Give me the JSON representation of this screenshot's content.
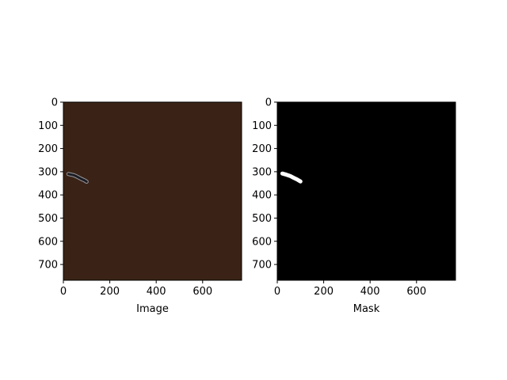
{
  "chart_data": [
    {
      "type": "image",
      "xlabel": "Image",
      "ylabel": "",
      "xlim": [
        0,
        768
      ],
      "ylim": [
        768,
        0
      ],
      "xticks": [
        0,
        200,
        400,
        600
      ],
      "yticks": [
        0,
        100,
        200,
        300,
        400,
        500,
        600,
        700
      ],
      "background_color": "#3a2316",
      "object": {
        "name": "dark elongated object",
        "color": "#1c1c22",
        "outline_color": "#9a9aa0",
        "path": [
          [
            22,
            310
          ],
          [
            45,
            315
          ],
          [
            60,
            322
          ],
          [
            75,
            330
          ],
          [
            92,
            338
          ],
          [
            100,
            343
          ]
        ]
      }
    },
    {
      "type": "image",
      "xlabel": "Mask",
      "ylabel": "",
      "xlim": [
        0,
        768
      ],
      "ylim": [
        768,
        0
      ],
      "xticks": [
        0,
        200,
        400,
        600
      ],
      "yticks": [
        0,
        100,
        200,
        300,
        400,
        500,
        600,
        700
      ],
      "background_color": "#000000",
      "object": {
        "name": "mask region",
        "color": "#ffffff",
        "path": [
          [
            22,
            308
          ],
          [
            40,
            313
          ],
          [
            55,
            318
          ],
          [
            70,
            326
          ],
          [
            85,
            333
          ],
          [
            100,
            342
          ]
        ]
      }
    }
  ]
}
